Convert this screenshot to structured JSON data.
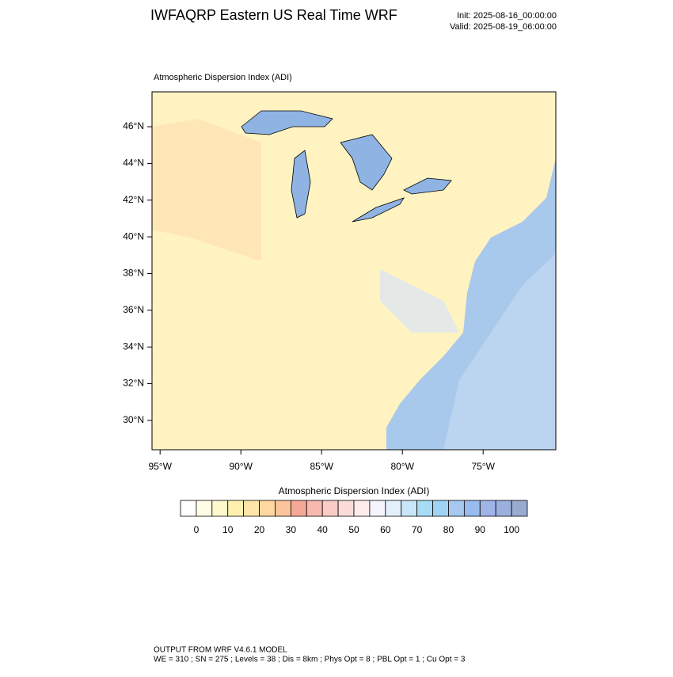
{
  "header": {
    "title": "IWFAQRP Eastern US Real Time WRF",
    "init": "Init: 2025-08-16_00:00:00",
    "valid": "Valid: 2025-08-19_06:00:00"
  },
  "map": {
    "subtitle": "Atmospheric Dispersion Index   (ADI)",
    "lat_lim": [
      28.4,
      47.9
    ],
    "lat_ticks": [
      {
        "value": 46,
        "label": "46°N"
      },
      {
        "value": 44,
        "label": "44°N"
      },
      {
        "value": 42,
        "label": "42°N"
      },
      {
        "value": 40,
        "label": "40°N"
      },
      {
        "value": 38,
        "label": "38°N"
      },
      {
        "value": 36,
        "label": "36°N"
      },
      {
        "value": 34,
        "label": "34°N"
      },
      {
        "value": 32,
        "label": "32°N"
      },
      {
        "value": 30,
        "label": "30°N"
      }
    ],
    "lon_lim": [
      -95.5,
      -70.5
    ],
    "lon_ticks": [
      {
        "value": -95,
        "label": "95°W"
      },
      {
        "value": -90,
        "label": "90°W"
      },
      {
        "value": -85,
        "label": "85°W"
      },
      {
        "value": -80,
        "label": "80°W"
      },
      {
        "value": -75,
        "label": "75°W"
      }
    ]
  },
  "colorbar": {
    "title": "Atmospheric Dispersion Index  (ADI)",
    "lim": [
      -5,
      105
    ],
    "ticks": [
      0,
      10,
      20,
      30,
      40,
      50,
      60,
      70,
      80,
      90,
      100
    ],
    "colors": [
      "#ffffff",
      "#fffde6",
      "#fff8cc",
      "#fff0b0",
      "#ffe6a8",
      "#ffd8a0",
      "#fcc49a",
      "#f6a898",
      "#f8b8b0",
      "#fbcbc6",
      "#fcdcd8",
      "#fdeceb",
      "#f6f4fc",
      "#e4f0fc",
      "#c8e6f8",
      "#a8dcf6",
      "#a0d2f4",
      "#a8c8f0",
      "#98bcee",
      "#a0b4e8",
      "#9cb0e0",
      "#98acd0"
    ]
  },
  "footer": {
    "line1": "OUTPUT FROM WRF V4.6.1 MODEL",
    "line2": "WE = 310 ; SN = 275 ; Levels = 38 ; Dis = 8km ; Phys Opt = 8 ; PBL Opt = 1 ; Cu Opt = 3"
  }
}
